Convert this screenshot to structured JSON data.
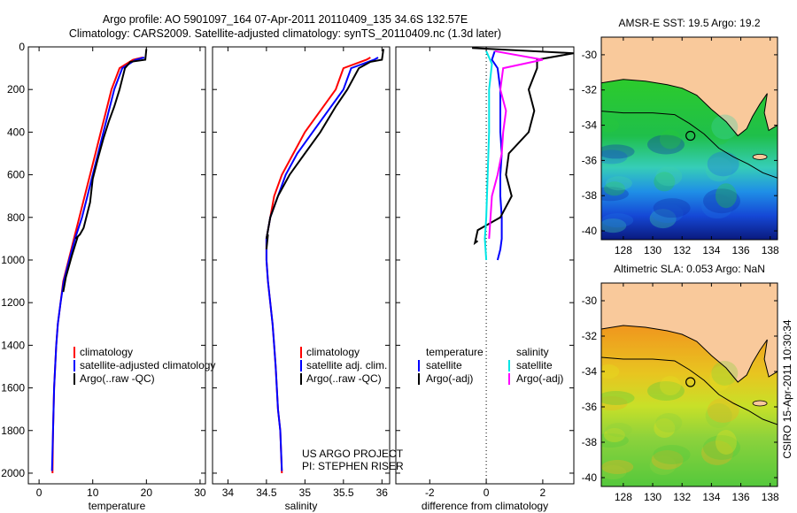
{
  "title_line1": "Argo profile: AO 5901097_164 07-Apr-2011 20110409_135 34.6S 132.57E",
  "title_line2": "Climatology: CARS2009. Satellite-adjusted climatology: synTS_20110409.nc (1.3d later)",
  "stamp": "CSIRO 15-Apr-2011 10:30:34",
  "project_line1": "US ARGO PROJECT",
  "project_line2": "PI: STEPHEN RISER",
  "colors": {
    "climatology": "#ff0000",
    "satellite": "#0000ff",
    "argo": "#000000",
    "sat_salinity": "#00e5e5",
    "argo_salinity": "#ff00ff",
    "land": "#f9c99b"
  },
  "chart_data": [
    {
      "type": "line",
      "xlabel": "temperature",
      "ylabel": "",
      "xlim": [
        -2,
        31
      ],
      "ylim": [
        2050,
        0
      ],
      "xticks": [
        0,
        10,
        20,
        30
      ],
      "yticks": [
        0,
        200,
        400,
        600,
        800,
        1000,
        1200,
        1400,
        1600,
        1800,
        2000
      ],
      "legend": [
        "climatology",
        "satellite-adjusted climatology",
        "Argo(..raw -QC)"
      ],
      "series": [
        {
          "name": "climatology",
          "color": "#ff0000",
          "points": [
            [
              19.3,
              50
            ],
            [
              17.5,
              60
            ],
            [
              15,
              100
            ],
            [
              13.5,
              200
            ],
            [
              12.5,
              300
            ],
            [
              11.5,
              400
            ],
            [
              10.5,
              500
            ],
            [
              9.5,
              600
            ],
            [
              8.5,
              700
            ],
            [
              7.5,
              800
            ],
            [
              6.5,
              900
            ],
            [
              5.5,
              1000
            ],
            [
              4.5,
              1100
            ],
            [
              4,
              1200
            ],
            [
              3.5,
              1300
            ],
            [
              3.2,
              1400
            ],
            [
              3,
              1500
            ],
            [
              2.8,
              1600
            ],
            [
              2.6,
              1800
            ],
            [
              2.5,
              2000
            ]
          ]
        },
        {
          "name": "satellite",
          "color": "#0000ff",
          "points": [
            [
              19.6,
              50
            ],
            [
              18,
              60
            ],
            [
              15.5,
              100
            ],
            [
              14,
              200
            ],
            [
              13,
              300
            ],
            [
              12,
              400
            ],
            [
              11,
              500
            ],
            [
              10,
              600
            ],
            [
              9,
              700
            ],
            [
              8,
              800
            ],
            [
              6.7,
              900
            ],
            [
              5.6,
              1000
            ],
            [
              4.6,
              1100
            ],
            [
              4,
              1200
            ],
            [
              3.5,
              1300
            ],
            [
              3.2,
              1400
            ],
            [
              3,
              1500
            ],
            [
              2.8,
              1600
            ],
            [
              2.6,
              1800
            ],
            [
              2.4,
              1990
            ]
          ]
        },
        {
          "name": "argo",
          "color": "#000000",
          "points": [
            [
              20,
              10
            ],
            [
              19.8,
              60
            ],
            [
              17,
              70
            ],
            [
              16,
              100
            ],
            [
              15,
              200
            ],
            [
              14,
              280
            ],
            [
              13,
              350
            ],
            [
              12,
              430
            ],
            [
              11,
              520
            ],
            [
              10,
              620
            ],
            [
              9.5,
              730
            ],
            [
              8.3,
              850
            ],
            [
              7.6,
              880
            ],
            [
              6.8,
              900
            ],
            [
              7.2,
              890
            ],
            [
              6.1,
              980
            ],
            [
              5,
              1080
            ],
            [
              4.5,
              1150
            ]
          ]
        }
      ]
    },
    {
      "type": "line",
      "xlabel": "salinity",
      "ylabel": "",
      "xlim": [
        33.8,
        36.1
      ],
      "ylim": [
        2050,
        0
      ],
      "xticks": [
        34,
        34.5,
        35,
        35.5,
        36
      ],
      "legend": [
        "climatology",
        "satellite adj. clim.",
        "Argo(..raw -QC)"
      ],
      "series": [
        {
          "name": "climatology",
          "color": "#ff0000",
          "points": [
            [
              35.85,
              50
            ],
            [
              35.8,
              60
            ],
            [
              35.5,
              100
            ],
            [
              35.4,
              200
            ],
            [
              35.2,
              300
            ],
            [
              35,
              400
            ],
            [
              34.85,
              500
            ],
            [
              34.7,
              600
            ],
            [
              34.6,
              700
            ],
            [
              34.55,
              800
            ],
            [
              34.5,
              900
            ],
            [
              34.5,
              1000
            ],
            [
              34.52,
              1100
            ],
            [
              34.55,
              1200
            ],
            [
              34.58,
              1300
            ],
            [
              34.6,
              1400
            ],
            [
              34.62,
              1500
            ],
            [
              34.65,
              1700
            ],
            [
              34.68,
              1800
            ],
            [
              34.7,
              2000
            ]
          ]
        },
        {
          "name": "satellite",
          "color": "#0000ff",
          "points": [
            [
              35.95,
              50
            ],
            [
              35.9,
              60
            ],
            [
              35.6,
              100
            ],
            [
              35.5,
              200
            ],
            [
              35.3,
              300
            ],
            [
              35.1,
              400
            ],
            [
              34.9,
              500
            ],
            [
              34.75,
              600
            ],
            [
              34.65,
              700
            ],
            [
              34.55,
              800
            ],
            [
              34.5,
              900
            ],
            [
              34.5,
              1000
            ],
            [
              34.52,
              1100
            ],
            [
              34.55,
              1200
            ],
            [
              34.58,
              1300
            ],
            [
              34.6,
              1400
            ],
            [
              34.62,
              1500
            ],
            [
              34.65,
              1700
            ],
            [
              34.68,
              1800
            ],
            [
              34.7,
              1990
            ]
          ]
        },
        {
          "name": "argo",
          "color": "#000000",
          "points": [
            [
              36.02,
              10
            ],
            [
              36,
              60
            ],
            [
              35.85,
              70
            ],
            [
              35.7,
              100
            ],
            [
              35.55,
              200
            ],
            [
              35.4,
              280
            ],
            [
              35.2,
              400
            ],
            [
              35,
              500
            ],
            [
              34.8,
              600
            ],
            [
              34.65,
              700
            ],
            [
              34.55,
              800
            ],
            [
              34.5,
              900
            ],
            [
              34.52,
              880
            ],
            [
              34.5,
              950
            ]
          ]
        }
      ]
    },
    {
      "type": "line",
      "xlabel": "difference from climatology",
      "ylabel": "",
      "xlim": [
        -3.2,
        3.1
      ],
      "ylim": [
        2050,
        0
      ],
      "xticks": [
        -2,
        0,
        2
      ],
      "legend_title_left": "temperature",
      "legend_title_right": "salinity",
      "legend_left": [
        "satellite",
        "Argo(-adj)"
      ],
      "legend_right": [
        "satellite",
        "Argo(-adj)"
      ],
      "series": [
        {
          "name": "temperature satellite",
          "color": "#0000ff",
          "points": [
            [
              0.3,
              20
            ],
            [
              0.2,
              60
            ],
            [
              0.4,
              100
            ],
            [
              0.5,
              200
            ],
            [
              0.5,
              300
            ],
            [
              0.5,
              400
            ],
            [
              0.55,
              500
            ],
            [
              0.5,
              600
            ],
            [
              0.5,
              700
            ],
            [
              0.55,
              800
            ],
            [
              0.55,
              900
            ],
            [
              0.5,
              950
            ],
            [
              0.4,
              1000
            ]
          ]
        },
        {
          "name": "temperature Argo",
          "color": "#000000",
          "points": [
            [
              -0.5,
              5
            ],
            [
              3.1,
              30
            ],
            [
              1.8,
              60
            ],
            [
              1.8,
              100
            ],
            [
              1.5,
              200
            ],
            [
              1.7,
              300
            ],
            [
              1.5,
              400
            ],
            [
              0.8,
              500
            ],
            [
              0.7,
              600
            ],
            [
              0.9,
              700
            ],
            [
              0.5,
              800
            ],
            [
              -0.3,
              860
            ],
            [
              -0.4,
              920
            ],
            [
              -0.3,
              910
            ]
          ]
        },
        {
          "name": "salinity satellite",
          "color": "#00e5e5",
          "points": [
            [
              0,
              20
            ],
            [
              0.2,
              80
            ],
            [
              0.1,
              200
            ],
            [
              0.1,
              400
            ],
            [
              0.05,
              600
            ],
            [
              0,
              800
            ],
            [
              -0.05,
              900
            ],
            [
              0,
              1000
            ]
          ]
        },
        {
          "name": "salinity Argo",
          "color": "#ff00ff",
          "points": [
            [
              0.3,
              20
            ],
            [
              2,
              60
            ],
            [
              0.6,
              100
            ],
            [
              0.5,
              200
            ],
            [
              0.7,
              300
            ],
            [
              0.6,
              400
            ],
            [
              0.55,
              500
            ],
            [
              0.4,
              600
            ],
            [
              0.2,
              700
            ],
            [
              0.15,
              800
            ],
            [
              0.1,
              900
            ]
          ]
        }
      ]
    },
    {
      "type": "heatmap",
      "title": "AMSR-E SST: 19.5 Argo: 19.2",
      "xlim": [
        126.5,
        138.5
      ],
      "ylim": [
        -40.5,
        -29
      ],
      "xticks": [
        128,
        130,
        132,
        134,
        136,
        138
      ],
      "yticks": [
        -30,
        -32,
        -34,
        -36,
        -38,
        -40
      ],
      "marker": [
        132.57,
        -34.6
      ],
      "colors": {
        "warm": "#1dbf29",
        "mid": "#2fd4c8",
        "cool": "#1565e6",
        "cold": "#0a1a8a"
      }
    },
    {
      "type": "heatmap",
      "title": "Altimetric SLA: 0.053 Argo: NaN",
      "xlim": [
        126.5,
        138.5
      ],
      "ylim": [
        -40.5,
        -29
      ],
      "xticks": [
        128,
        130,
        132,
        134,
        136,
        138
      ],
      "yticks": [
        -30,
        -32,
        -34,
        -36,
        -38,
        -40
      ],
      "marker": [
        132.57,
        -34.6
      ],
      "colors": {
        "high": "#f0961e",
        "mid": "#e6e020",
        "low": "#8cd23c",
        "lower": "#3cbf3c"
      }
    }
  ]
}
